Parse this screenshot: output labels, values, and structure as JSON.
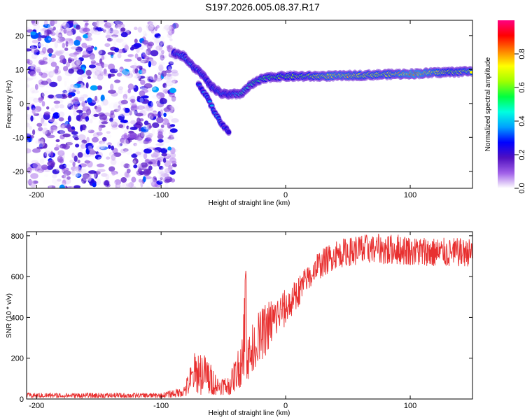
{
  "title": "S197.2026.005.08.37.R17",
  "chart_data": [
    {
      "type": "heatmap",
      "id": "spectrogram",
      "xlabel": "Height of straight line (km)",
      "ylabel": "Frequency (Hz)",
      "xlim": [
        -208,
        150
      ],
      "ylim": [
        -25,
        24.5
      ],
      "xticks": [
        -200,
        -100,
        0,
        100
      ],
      "yticks": [
        -20,
        -10,
        0,
        10,
        20
      ],
      "colorbar": {
        "label": "Normalized spectral amplitude",
        "range": [
          0,
          1
        ],
        "ticks": [
          0.0,
          0.2,
          0.4,
          0.6,
          0.8
        ],
        "colormap": [
          "#ffffff",
          "#a060e8",
          "#5010c0",
          "#0000ff",
          "#00a0ff",
          "#00ffe0",
          "#00ff40",
          "#a0ff00",
          "#ffff00",
          "#ff8000",
          "#ff0000",
          "#ff0080"
        ]
      },
      "noise_region": {
        "x": [
          -208,
          -88
        ],
        "amplitude_range": [
          0.0,
          0.25
        ]
      },
      "ridge": {
        "description_points": [
          {
            "x": -90,
            "f": 15,
            "a": 0.3
          },
          {
            "x": -82,
            "f": 14,
            "a": 0.35
          },
          {
            "x": -75,
            "f": 11,
            "a": 0.35
          },
          {
            "x": -68,
            "f": 9,
            "a": 0.3
          },
          {
            "x": -60,
            "f": 5,
            "a": 0.3
          },
          {
            "x": -52,
            "f": 3,
            "a": 0.35
          },
          {
            "x": -45,
            "f": 2.5,
            "a": 0.3
          },
          {
            "x": -35,
            "f": 3,
            "a": 0.45
          },
          {
            "x": -28,
            "f": 5.5,
            "a": 0.5
          },
          {
            "x": -20,
            "f": 7,
            "a": 0.55
          },
          {
            "x": -12,
            "f": 7.8,
            "a": 0.55
          },
          {
            "x": 0,
            "f": 8.0,
            "a": 0.6
          },
          {
            "x": 20,
            "f": 8.0,
            "a": 0.65
          },
          {
            "x": 40,
            "f": 8.1,
            "a": 0.75
          },
          {
            "x": 60,
            "f": 8.3,
            "a": 0.7
          },
          {
            "x": 85,
            "f": 8.6,
            "a": 0.7
          },
          {
            "x": 105,
            "f": 8.8,
            "a": 0.85
          },
          {
            "x": 130,
            "f": 9.2,
            "a": 0.65
          },
          {
            "x": 150,
            "f": 9.5,
            "a": 0.7
          }
        ],
        "branch": [
          {
            "x": -70,
            "f": 6,
            "a": 0.3
          },
          {
            "x": -62,
            "f": 1,
            "a": 0.3
          },
          {
            "x": -55,
            "f": -4,
            "a": 0.35
          },
          {
            "x": -45,
            "f": -9,
            "a": 0.25
          }
        ]
      }
    },
    {
      "type": "line",
      "id": "snr",
      "xlabel": "Height of straight line (km)",
      "ylabel": "SNR (10 * v/v)",
      "xlim": [
        -208,
        150
      ],
      "ylim": [
        0,
        820
      ],
      "xticks": [
        -200,
        -100,
        0,
        100
      ],
      "yticks": [
        0,
        200,
        400,
        600,
        800
      ],
      "series": [
        {
          "name": "SNR",
          "color": "#e83030",
          "envelope": [
            {
              "x": -208,
              "lo": 5,
              "hi": 30
            },
            {
              "x": -100,
              "lo": 5,
              "hi": 30
            },
            {
              "x": -82,
              "lo": 10,
              "hi": 60
            },
            {
              "x": -72,
              "lo": 20,
              "hi": 250
            },
            {
              "x": -64,
              "lo": 20,
              "hi": 220
            },
            {
              "x": -55,
              "lo": 20,
              "hi": 110
            },
            {
              "x": -45,
              "lo": 20,
              "hi": 110
            },
            {
              "x": -36,
              "lo": 60,
              "hi": 300
            },
            {
              "x": -32,
              "lo": 100,
              "hi": 630
            },
            {
              "x": -29,
              "lo": 80,
              "hi": 320
            },
            {
              "x": -25,
              "lo": 150,
              "hi": 400
            },
            {
              "x": -15,
              "lo": 220,
              "hi": 480
            },
            {
              "x": -5,
              "lo": 320,
              "hi": 520
            },
            {
              "x": 5,
              "lo": 400,
              "hi": 560
            },
            {
              "x": 15,
              "lo": 500,
              "hi": 640
            },
            {
              "x": 25,
              "lo": 580,
              "hi": 720
            },
            {
              "x": 40,
              "lo": 640,
              "hi": 780
            },
            {
              "x": 60,
              "lo": 660,
              "hi": 810
            },
            {
              "x": 90,
              "lo": 660,
              "hi": 810
            },
            {
              "x": 120,
              "lo": 650,
              "hi": 790
            },
            {
              "x": 150,
              "lo": 650,
              "hi": 790
            }
          ],
          "samples": 1200
        }
      ]
    }
  ]
}
